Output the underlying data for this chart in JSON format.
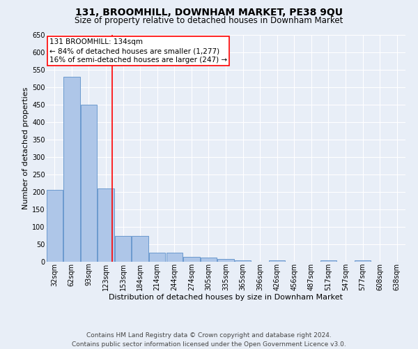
{
  "title": "131, BROOMHILL, DOWNHAM MARKET, PE38 9QU",
  "subtitle": "Size of property relative to detached houses in Downham Market",
  "xlabel": "Distribution of detached houses by size in Downham Market",
  "ylabel": "Number of detached properties",
  "footer_line1": "Contains HM Land Registry data © Crown copyright and database right 2024.",
  "footer_line2": "Contains public sector information licensed under the Open Government Licence v3.0.",
  "bin_labels": [
    "32sqm",
    "62sqm",
    "93sqm",
    "123sqm",
    "153sqm",
    "184sqm",
    "214sqm",
    "244sqm",
    "274sqm",
    "305sqm",
    "335sqm",
    "365sqm",
    "396sqm",
    "426sqm",
    "456sqm",
    "487sqm",
    "517sqm",
    "547sqm",
    "577sqm",
    "608sqm",
    "638sqm"
  ],
  "bar_values": [
    207,
    530,
    450,
    210,
    75,
    75,
    27,
    27,
    15,
    12,
    8,
    5,
    0,
    5,
    0,
    0,
    5,
    0,
    5,
    0,
    0
  ],
  "bar_color": "#aec6e8",
  "bar_edgecolor": "#5b8fc9",
  "property_value": 134,
  "annotation_line1": "131 BROOMHILL: 134sqm",
  "annotation_line2": "← 84% of detached houses are smaller (1,277)",
  "annotation_line3": "16% of semi-detached houses are larger (247) →",
  "annotation_box_color": "white",
  "annotation_box_edgecolor": "red",
  "vline_color": "red",
  "ylim": [
    0,
    650
  ],
  "yticks": [
    0,
    50,
    100,
    150,
    200,
    250,
    300,
    350,
    400,
    450,
    500,
    550,
    600,
    650
  ],
  "background_color": "#e8eef7",
  "grid_color": "white",
  "title_fontsize": 10,
  "subtitle_fontsize": 8.5,
  "ylabel_fontsize": 8,
  "xlabel_fontsize": 8,
  "tick_fontsize": 7,
  "annotation_fontsize": 7.5,
  "footer_fontsize": 6.5
}
